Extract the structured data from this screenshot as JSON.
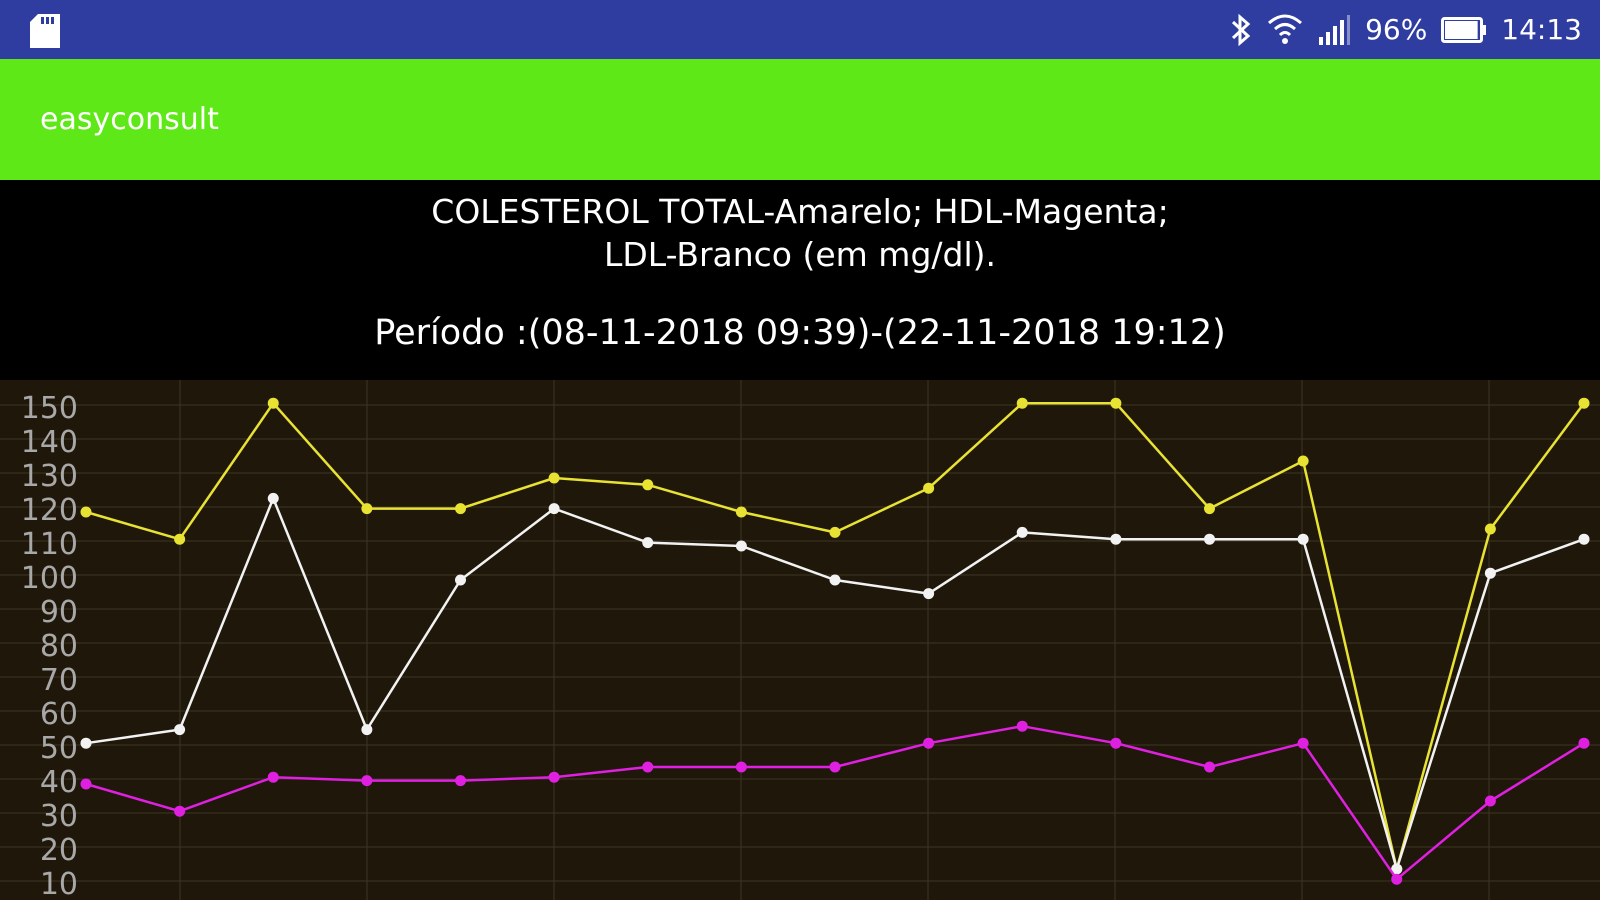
{
  "status_bar": {
    "battery_percent_label": "96%",
    "time": "14:13",
    "battery_level": 0.96,
    "icons": [
      "sd-card-icon",
      "bluetooth-icon",
      "wifi-icon",
      "cell-signal-icon",
      "battery-icon"
    ]
  },
  "app_bar": {
    "title": "easyconsult",
    "color": "#5ee817"
  },
  "header": {
    "legend_line1": "COLESTEROL TOTAL-Amarelo; HDL-Magenta;",
    "legend_line2": "LDL-Branco (em mg/dl).",
    "period": "Período :(08-11-2018 09:39)-(22-11-2018 19:12)"
  },
  "chart_data": {
    "type": "line",
    "title": "",
    "xlabel": "",
    "ylabel": "",
    "ylim": [
      10,
      152
    ],
    "yticks": [
      "150",
      "140",
      "130",
      "120",
      "110",
      "100",
      "90",
      "80",
      "70",
      "60",
      "50",
      "40",
      "30",
      "20",
      "10"
    ],
    "ytick_values": [
      150,
      140,
      130,
      120,
      110,
      100,
      90,
      80,
      70,
      60,
      50,
      40,
      30,
      20,
      10
    ],
    "grid": true,
    "x": [
      1,
      2,
      3,
      4,
      5,
      6,
      7,
      8,
      9,
      10,
      11,
      12,
      13,
      14,
      15,
      16,
      17
    ],
    "series": [
      {
        "name": "COLESTEROL TOTAL",
        "color": "#e8e233",
        "values": [
          120,
          112,
          152,
          121,
          121,
          130,
          128,
          120,
          114,
          127,
          152,
          152,
          121,
          135,
          15,
          115,
          152
        ]
      },
      {
        "name": "LDL",
        "color": "#f2f2f2",
        "values": [
          52,
          56,
          124,
          56,
          100,
          121,
          111,
          110,
          100,
          96,
          114,
          112,
          112,
          112,
          15,
          102,
          112
        ]
      },
      {
        "name": "HDL",
        "color": "#e020e0",
        "values": [
          40,
          32,
          42,
          41,
          41,
          42,
          45,
          45,
          45,
          52,
          57,
          52,
          45,
          52,
          12,
          35,
          52
        ]
      }
    ]
  }
}
